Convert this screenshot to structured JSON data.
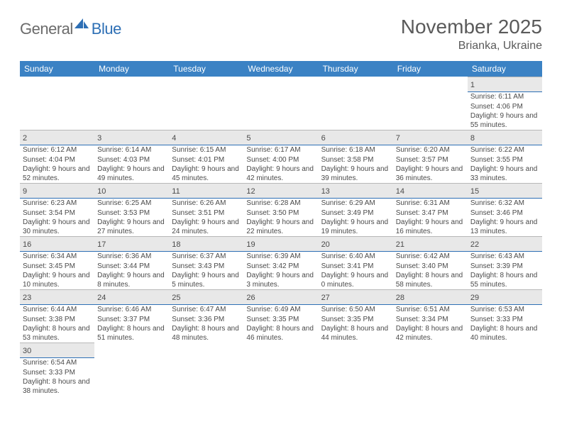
{
  "brand": {
    "general": "General",
    "blue": "Blue"
  },
  "title": "November 2025",
  "location": "Brianka, Ukraine",
  "colors": {
    "header_bg": "#3b82c4",
    "header_text": "#ffffff",
    "daynum_bg": "#e8e8e8",
    "cell_divider": "#2d6fb5",
    "text": "#4a4a4a",
    "title_text": "#5a5a5a"
  },
  "weekdays": [
    "Sunday",
    "Monday",
    "Tuesday",
    "Wednesday",
    "Thursday",
    "Friday",
    "Saturday"
  ],
  "grid": [
    [
      null,
      null,
      null,
      null,
      null,
      null,
      {
        "n": "1",
        "sr": "6:11 AM",
        "ss": "4:06 PM",
        "dl": "9 hours and 55 minutes."
      }
    ],
    [
      {
        "n": "2",
        "sr": "6:12 AM",
        "ss": "4:04 PM",
        "dl": "9 hours and 52 minutes."
      },
      {
        "n": "3",
        "sr": "6:14 AM",
        "ss": "4:03 PM",
        "dl": "9 hours and 49 minutes."
      },
      {
        "n": "4",
        "sr": "6:15 AM",
        "ss": "4:01 PM",
        "dl": "9 hours and 45 minutes."
      },
      {
        "n": "5",
        "sr": "6:17 AM",
        "ss": "4:00 PM",
        "dl": "9 hours and 42 minutes."
      },
      {
        "n": "6",
        "sr": "6:18 AM",
        "ss": "3:58 PM",
        "dl": "9 hours and 39 minutes."
      },
      {
        "n": "7",
        "sr": "6:20 AM",
        "ss": "3:57 PM",
        "dl": "9 hours and 36 minutes."
      },
      {
        "n": "8",
        "sr": "6:22 AM",
        "ss": "3:55 PM",
        "dl": "9 hours and 33 minutes."
      }
    ],
    [
      {
        "n": "9",
        "sr": "6:23 AM",
        "ss": "3:54 PM",
        "dl": "9 hours and 30 minutes."
      },
      {
        "n": "10",
        "sr": "6:25 AM",
        "ss": "3:53 PM",
        "dl": "9 hours and 27 minutes."
      },
      {
        "n": "11",
        "sr": "6:26 AM",
        "ss": "3:51 PM",
        "dl": "9 hours and 24 minutes."
      },
      {
        "n": "12",
        "sr": "6:28 AM",
        "ss": "3:50 PM",
        "dl": "9 hours and 22 minutes."
      },
      {
        "n": "13",
        "sr": "6:29 AM",
        "ss": "3:49 PM",
        "dl": "9 hours and 19 minutes."
      },
      {
        "n": "14",
        "sr": "6:31 AM",
        "ss": "3:47 PM",
        "dl": "9 hours and 16 minutes."
      },
      {
        "n": "15",
        "sr": "6:32 AM",
        "ss": "3:46 PM",
        "dl": "9 hours and 13 minutes."
      }
    ],
    [
      {
        "n": "16",
        "sr": "6:34 AM",
        "ss": "3:45 PM",
        "dl": "9 hours and 10 minutes."
      },
      {
        "n": "17",
        "sr": "6:36 AM",
        "ss": "3:44 PM",
        "dl": "9 hours and 8 minutes."
      },
      {
        "n": "18",
        "sr": "6:37 AM",
        "ss": "3:43 PM",
        "dl": "9 hours and 5 minutes."
      },
      {
        "n": "19",
        "sr": "6:39 AM",
        "ss": "3:42 PM",
        "dl": "9 hours and 3 minutes."
      },
      {
        "n": "20",
        "sr": "6:40 AM",
        "ss": "3:41 PM",
        "dl": "9 hours and 0 minutes."
      },
      {
        "n": "21",
        "sr": "6:42 AM",
        "ss": "3:40 PM",
        "dl": "8 hours and 58 minutes."
      },
      {
        "n": "22",
        "sr": "6:43 AM",
        "ss": "3:39 PM",
        "dl": "8 hours and 55 minutes."
      }
    ],
    [
      {
        "n": "23",
        "sr": "6:44 AM",
        "ss": "3:38 PM",
        "dl": "8 hours and 53 minutes."
      },
      {
        "n": "24",
        "sr": "6:46 AM",
        "ss": "3:37 PM",
        "dl": "8 hours and 51 minutes."
      },
      {
        "n": "25",
        "sr": "6:47 AM",
        "ss": "3:36 PM",
        "dl": "8 hours and 48 minutes."
      },
      {
        "n": "26",
        "sr": "6:49 AM",
        "ss": "3:35 PM",
        "dl": "8 hours and 46 minutes."
      },
      {
        "n": "27",
        "sr": "6:50 AM",
        "ss": "3:35 PM",
        "dl": "8 hours and 44 minutes."
      },
      {
        "n": "28",
        "sr": "6:51 AM",
        "ss": "3:34 PM",
        "dl": "8 hours and 42 minutes."
      },
      {
        "n": "29",
        "sr": "6:53 AM",
        "ss": "3:33 PM",
        "dl": "8 hours and 40 minutes."
      }
    ],
    [
      {
        "n": "30",
        "sr": "6:54 AM",
        "ss": "3:33 PM",
        "dl": "8 hours and 38 minutes."
      },
      null,
      null,
      null,
      null,
      null,
      null
    ]
  ],
  "labels": {
    "sunrise": "Sunrise:",
    "sunset": "Sunset:",
    "daylight": "Daylight:"
  }
}
